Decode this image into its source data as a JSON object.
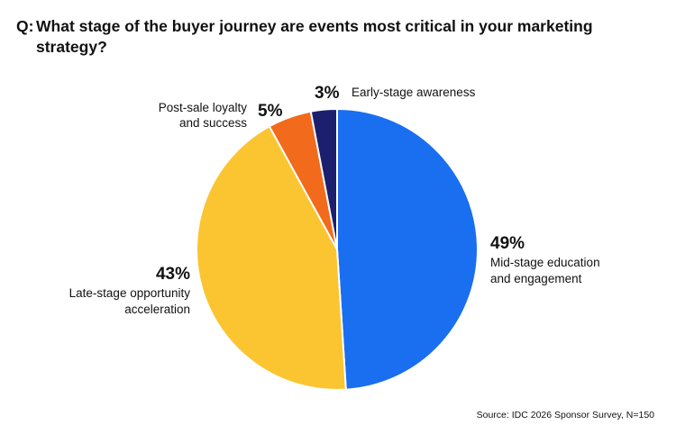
{
  "question": {
    "prefix": "Q:",
    "text": "What stage of the buyer journey are events most critical in your marketing strategy?"
  },
  "chart_data": {
    "type": "pie",
    "slices": [
      {
        "label_lines": [
          "Mid-stage education",
          "and engagement"
        ],
        "value": 49,
        "value_label": "49%",
        "color": "#1a6ef0"
      },
      {
        "label_lines": [
          "Late-stage opportunity",
          "acceleration"
        ],
        "value": 43,
        "value_label": "43%",
        "color": "#fbc531"
      },
      {
        "label_lines": [
          "Post-sale loyalty",
          "and success"
        ],
        "value": 5,
        "value_label": "5%",
        "color": "#f26a1b"
      },
      {
        "label_lines": [
          "Early-stage awareness"
        ],
        "value": 3,
        "value_label": "3%",
        "color": "#1c1f6e"
      }
    ]
  },
  "source": "Source: IDC 2026 Sponsor Survey, N=150"
}
